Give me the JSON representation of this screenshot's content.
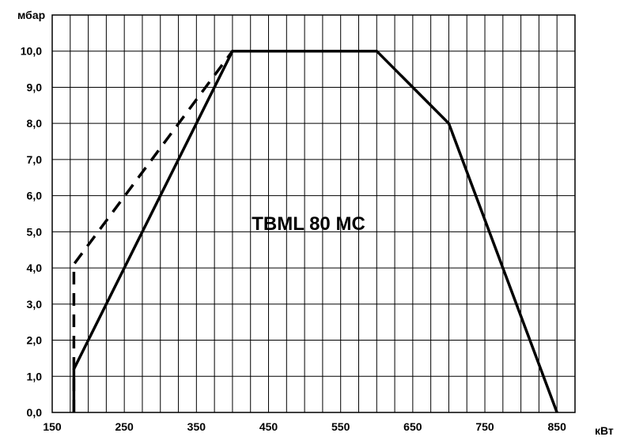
{
  "chart_data": {
    "type": "line",
    "title": "TBML 80 MC",
    "xlabel": "кВт",
    "ylabel": "мбар",
    "xlim": [
      150,
      875
    ],
    "ylim": [
      0,
      11
    ],
    "grid": true,
    "x_ticks": [
      {
        "value": 150,
        "label": "150"
      },
      {
        "value": 250,
        "label": "250"
      },
      {
        "value": 350,
        "label": "350"
      },
      {
        "value": 450,
        "label": "450"
      },
      {
        "value": 550,
        "label": "550"
      },
      {
        "value": 650,
        "label": "650"
      },
      {
        "value": 750,
        "label": "750"
      },
      {
        "value": 850,
        "label": "850"
      }
    ],
    "y_ticks": [
      {
        "value": 0,
        "label": "0,0"
      },
      {
        "value": 1,
        "label": "1,0"
      },
      {
        "value": 2,
        "label": "2,0"
      },
      {
        "value": 3,
        "label": "3,0"
      },
      {
        "value": 4,
        "label": "4,0"
      },
      {
        "value": 5,
        "label": "5,0"
      },
      {
        "value": 6,
        "label": "6,0"
      },
      {
        "value": 7,
        "label": "7,0"
      },
      {
        "value": 8,
        "label": "8,0"
      },
      {
        "value": 9,
        "label": "9,0"
      },
      {
        "value": 10,
        "label": "10,0"
      }
    ],
    "series": [
      {
        "style": "solid",
        "color": "#000000",
        "points": [
          {
            "x": 180,
            "y": 0
          },
          {
            "x": 180,
            "y": 1.2
          },
          {
            "x": 400,
            "y": 10
          },
          {
            "x": 600,
            "y": 10
          },
          {
            "x": 700,
            "y": 8
          },
          {
            "x": 850,
            "y": 0
          }
        ]
      },
      {
        "style": "dashed",
        "color": "#000000",
        "points": [
          {
            "x": 180,
            "y": 0
          },
          {
            "x": 180,
            "y": 4.1
          },
          {
            "x": 400,
            "y": 10
          }
        ]
      }
    ]
  }
}
